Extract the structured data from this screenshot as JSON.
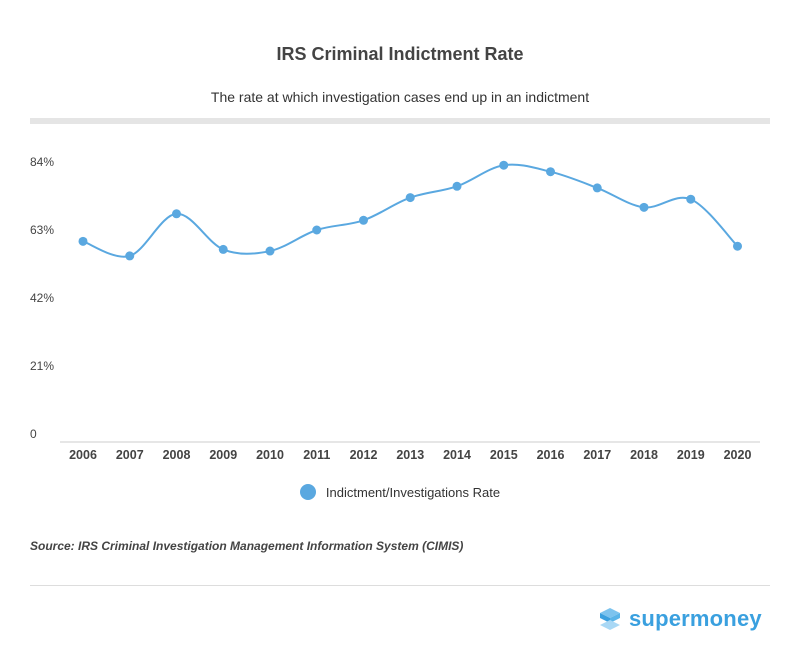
{
  "header": {
    "title": "IRS Criminal Indictment Rate",
    "subtitle": "The rate at which investigation cases end up in an indictment"
  },
  "chart_data": {
    "type": "line",
    "title": "IRS Criminal Indictment Rate",
    "subtitle": "The rate at which investigation cases end up in an indictment",
    "x": [
      "2006",
      "2007",
      "2008",
      "2009",
      "2010",
      "2011",
      "2012",
      "2013",
      "2014",
      "2015",
      "2016",
      "2017",
      "2018",
      "2019",
      "2020"
    ],
    "yticks": [
      "0",
      "21%",
      "42%",
      "63%",
      "84%"
    ],
    "ylim": [
      0,
      84
    ],
    "series": [
      {
        "name": "Indictment/Investigations Rate",
        "color": "#5aa8e0",
        "values": [
          59.5,
          55,
          68,
          57,
          56.5,
          63,
          66,
          73,
          76.5,
          83,
          81,
          76,
          70,
          72.5,
          58
        ]
      }
    ],
    "legend": "bottom-center",
    "grid": false
  },
  "footer": {
    "source": "Source: IRS Criminal Investigation Management Information System (CIMIS)",
    "brand": "supermoney"
  }
}
